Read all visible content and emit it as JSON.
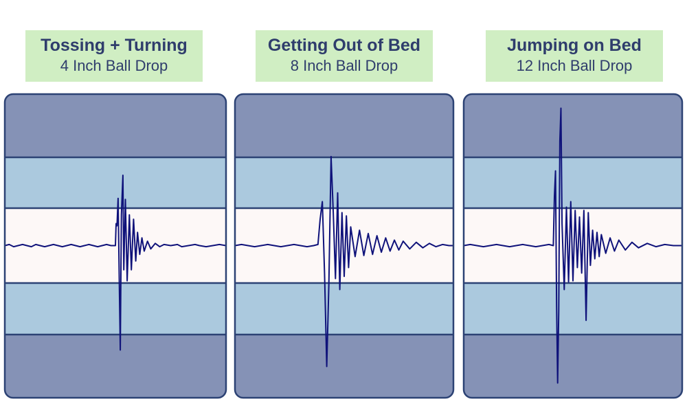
{
  "colors": {
    "outer_layer": "#8592b6",
    "middle_layer": "#abc9de",
    "center_band": "#fdf8f7",
    "border": "#2c4274",
    "trace": "#0f127a",
    "label_bg": "#d0eec3",
    "label_text": "#2f3d6c"
  },
  "chart_data": [
    {
      "type": "line",
      "title": "Tossing + Turning",
      "subtitle": "4 Inch Ball Drop",
      "xlabel": "",
      "ylabel": "",
      "grid": false,
      "ylim": [
        -1,
        1
      ],
      "series": [
        {
          "x": [
            0,
            0.02,
            0.04,
            0.06,
            0.08,
            0.1,
            0.12,
            0.14,
            0.16,
            0.18,
            0.2,
            0.22,
            0.24,
            0.26,
            0.28,
            0.3,
            0.32,
            0.34,
            0.36,
            0.38,
            0.4,
            0.42,
            0.44,
            0.46,
            0.48,
            0.5,
            0.503,
            0.507,
            0.512,
            0.518,
            0.522,
            0.527,
            0.534,
            0.538,
            0.545,
            0.553,
            0.563,
            0.572,
            0.582,
            0.592,
            0.6,
            0.61,
            0.62,
            0.63,
            0.645,
            0.66,
            0.68,
            0.7,
            0.72,
            0.75,
            0.78,
            0.8,
            0.83,
            0.86,
            0.88,
            0.91,
            0.94,
            0.97,
            1.0
          ],
          "values": [
            0.0,
            0.01,
            -0.01,
            0.0,
            0.01,
            0.0,
            -0.01,
            0.01,
            0.0,
            -0.01,
            0.0,
            0.01,
            0.0,
            -0.01,
            0.0,
            0.01,
            0.0,
            -0.01,
            0.0,
            0.01,
            0.0,
            -0.01,
            0.0,
            0.01,
            0.0,
            0.0,
            0.2,
            0.18,
            0.43,
            -0.4,
            -0.95,
            0.28,
            0.64,
            -0.22,
            0.42,
            -0.32,
            0.28,
            -0.22,
            0.24,
            -0.14,
            0.12,
            -0.08,
            0.07,
            -0.05,
            0.04,
            -0.03,
            0.02,
            -0.01,
            0.01,
            0.0,
            0.01,
            -0.01,
            0.0,
            0.01,
            0.0,
            -0.01,
            0.0,
            0.01,
            0.0
          ]
        }
      ]
    },
    {
      "type": "line",
      "title": "Getting Out of Bed",
      "subtitle": "8 Inch Ball Drop",
      "xlabel": "",
      "ylabel": "",
      "grid": false,
      "ylim": [
        -1,
        1
      ],
      "series": [
        {
          "x": [
            0,
            0.03,
            0.06,
            0.09,
            0.12,
            0.15,
            0.18,
            0.21,
            0.24,
            0.27,
            0.3,
            0.33,
            0.36,
            0.38,
            0.39,
            0.4,
            0.41,
            0.42,
            0.43,
            0.44,
            0.45,
            0.46,
            0.47,
            0.48,
            0.49,
            0.5,
            0.51,
            0.52,
            0.53,
            0.55,
            0.57,
            0.59,
            0.61,
            0.63,
            0.65,
            0.67,
            0.69,
            0.71,
            0.73,
            0.75,
            0.77,
            0.8,
            0.83,
            0.86,
            0.89,
            0.92,
            0.95,
            0.98,
            1.0
          ],
          "values": [
            0.0,
            0.01,
            0.0,
            -0.01,
            0.0,
            0.01,
            0.0,
            -0.01,
            0.0,
            0.01,
            0.0,
            -0.01,
            0.0,
            0.01,
            0.24,
            0.4,
            -0.25,
            -1.1,
            -0.35,
            0.81,
            0.3,
            -0.3,
            0.48,
            -0.4,
            0.3,
            -0.28,
            0.27,
            -0.2,
            0.17,
            -0.1,
            0.14,
            -0.09,
            0.11,
            -0.08,
            0.09,
            -0.06,
            0.07,
            -0.05,
            0.05,
            -0.04,
            0.04,
            -0.03,
            0.03,
            -0.02,
            0.02,
            -0.01,
            0.01,
            0.0,
            0.0
          ]
        }
      ]
    },
    {
      "type": "line",
      "title": "Jumping on Bed",
      "subtitle": "12 Inch Ball Drop",
      "xlabel": "",
      "ylabel": "",
      "grid": false,
      "ylim": [
        -1,
        1
      ],
      "series": [
        {
          "x": [
            0,
            0.03,
            0.06,
            0.09,
            0.12,
            0.15,
            0.18,
            0.21,
            0.24,
            0.27,
            0.3,
            0.33,
            0.36,
            0.39,
            0.41,
            0.415,
            0.42,
            0.425,
            0.43,
            0.435,
            0.44,
            0.445,
            0.45,
            0.46,
            0.47,
            0.48,
            0.49,
            0.5,
            0.51,
            0.52,
            0.53,
            0.54,
            0.55,
            0.56,
            0.57,
            0.58,
            0.59,
            0.6,
            0.61,
            0.62,
            0.63,
            0.65,
            0.67,
            0.69,
            0.71,
            0.74,
            0.77,
            0.8,
            0.84,
            0.88,
            0.92,
            0.96,
            1.0
          ],
          "values": [
            0.0,
            0.01,
            0.0,
            -0.01,
            0.0,
            0.01,
            0.0,
            -0.01,
            0.0,
            0.01,
            0.0,
            -0.01,
            0.0,
            0.01,
            0.0,
            0.45,
            0.68,
            -0.55,
            -1.25,
            -0.6,
            0.95,
            1.25,
            0.2,
            -0.4,
            0.35,
            -0.33,
            0.4,
            -0.32,
            0.32,
            -0.2,
            0.26,
            -0.25,
            0.32,
            -0.68,
            0.3,
            -0.18,
            0.14,
            -0.12,
            0.12,
            -0.1,
            0.1,
            -0.07,
            0.07,
            -0.05,
            0.05,
            -0.04,
            0.03,
            -0.02,
            0.02,
            -0.01,
            0.01,
            0.0,
            0.0
          ]
        }
      ]
    }
  ]
}
